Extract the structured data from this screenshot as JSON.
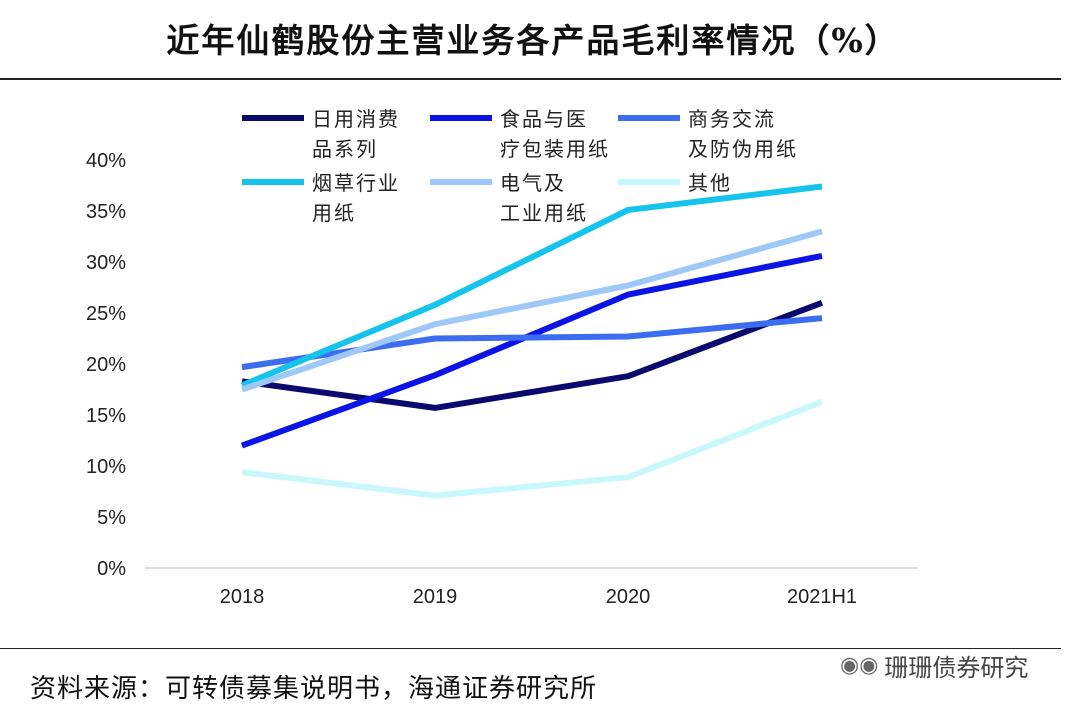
{
  "title": "近年仙鹤股份主营业务各产品毛利率情况（%）",
  "source": "资料来源：可转债募集说明书，海通证券研究所",
  "watermark": {
    "icon": "wechat-icon",
    "text": "珊珊债券研究"
  },
  "chart_data": {
    "type": "line",
    "title": "近年仙鹤股份主营业务各产品毛利率情况（%）",
    "categories": [
      "2018",
      "2019",
      "2020",
      "2021H1"
    ],
    "ylim": [
      0,
      40
    ],
    "yticks": [
      0,
      5,
      10,
      15,
      20,
      25,
      30,
      35,
      40
    ],
    "ytick_suffix": "%",
    "grid": false,
    "legend_position": "top",
    "series": [
      {
        "name_lines": [
          "日用消费",
          "品系列"
        ],
        "color": "#0a0a6e",
        "values": [
          18.3,
          15.7,
          18.8,
          26.0
        ]
      },
      {
        "name_lines": [
          "食品与医",
          "疗包装用纸"
        ],
        "color": "#0a14e6",
        "values": [
          12.0,
          18.9,
          26.8,
          30.6
        ]
      },
      {
        "name_lines": [
          "商务交流",
          "及防伪用纸"
        ],
        "color": "#3c6cf0",
        "values": [
          19.7,
          22.5,
          22.7,
          24.5
        ]
      },
      {
        "name_lines": [
          "烟草行业",
          "用纸"
        ],
        "color": "#14c4ec",
        "values": [
          17.9,
          25.8,
          35.1,
          37.4
        ]
      },
      {
        "name_lines": [
          "电气及",
          "工业用纸"
        ],
        "color": "#9ec8f8",
        "values": [
          17.5,
          23.9,
          27.7,
          33.0
        ]
      },
      {
        "name_lines": [
          "其他"
        ],
        "color": "#c8f8fc",
        "values": [
          9.4,
          7.1,
          8.9,
          16.3
        ]
      }
    ]
  }
}
